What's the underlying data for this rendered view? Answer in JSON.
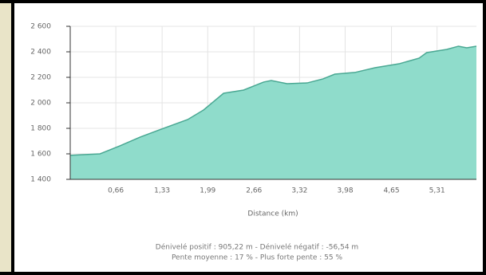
{
  "chart_data": {
    "type": "area",
    "x": [
      0,
      0.43,
      0.72,
      1.01,
      1.29,
      1.7,
      1.93,
      2.22,
      2.51,
      2.8,
      2.91,
      3.14,
      3.43,
      3.66,
      3.83,
      4.12,
      4.41,
      4.76,
      5.05,
      5.16,
      5.45,
      5.62,
      5.74,
      5.88
    ],
    "values": [
      1588,
      1600,
      1663,
      1731,
      1788,
      1869,
      1944,
      2075,
      2100,
      2163,
      2175,
      2150,
      2156,
      2188,
      2225,
      2238,
      2275,
      2306,
      2350,
      2394,
      2419,
      2444,
      2431,
      2444
    ],
    "color": "#8fdccb",
    "line_color": "#4aa893",
    "xlim": [
      0,
      5.88
    ],
    "xticks": [
      {
        "value": 0.66,
        "label": "0,66"
      },
      {
        "value": 1.33,
        "label": "1,33"
      },
      {
        "value": 1.99,
        "label": "1,99"
      },
      {
        "value": 2.66,
        "label": "2,66"
      },
      {
        "value": 3.32,
        "label": "3,32"
      },
      {
        "value": 3.98,
        "label": "3,98"
      },
      {
        "value": 4.65,
        "label": "4,65"
      },
      {
        "value": 5.31,
        "label": "5,31"
      }
    ],
    "ylim": [
      1400,
      2600
    ],
    "yticks": [
      {
        "value": 1400,
        "label": "1 400"
      },
      {
        "value": 1600,
        "label": "1 600"
      },
      {
        "value": 1800,
        "label": "1 800"
      },
      {
        "value": 2000,
        "label": "2 000"
      },
      {
        "value": 2200,
        "label": "2 200"
      },
      {
        "value": 2400,
        "label": "2 400"
      },
      {
        "value": 2600,
        "label": "2 600"
      }
    ],
    "grid": true,
    "xlabel": "Distance (km)",
    "notes": [
      "Dénivelé positif : 905,22 m - Dénivelé négatif : -56,54 m",
      "Pente moyenne : 17 % - Plus forte pente : 55 %"
    ]
  }
}
